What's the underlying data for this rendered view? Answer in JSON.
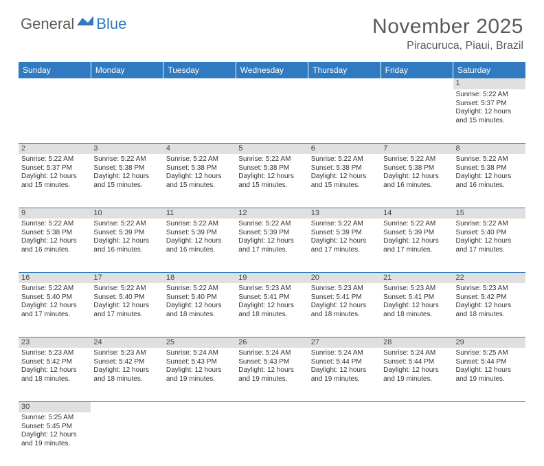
{
  "logo": {
    "text1": "General",
    "text2": "Blue"
  },
  "title": "November 2025",
  "location": "Piracuruca, Piaui, Brazil",
  "colors": {
    "headerBar": "#2f7ac0",
    "dayNumBg": "#e0e0e0",
    "textDark": "#5a5a5a",
    "cellBorder": "#2f7ac0"
  },
  "dayHeaders": [
    "Sunday",
    "Monday",
    "Tuesday",
    "Wednesday",
    "Thursday",
    "Friday",
    "Saturday"
  ],
  "weeks": [
    [
      null,
      null,
      null,
      null,
      null,
      null,
      {
        "n": "1",
        "sr": "5:22 AM",
        "ss": "5:37 PM",
        "dl": "12 hours and 15 minutes."
      }
    ],
    [
      {
        "n": "2",
        "sr": "5:22 AM",
        "ss": "5:37 PM",
        "dl": "12 hours and 15 minutes."
      },
      {
        "n": "3",
        "sr": "5:22 AM",
        "ss": "5:38 PM",
        "dl": "12 hours and 15 minutes."
      },
      {
        "n": "4",
        "sr": "5:22 AM",
        "ss": "5:38 PM",
        "dl": "12 hours and 15 minutes."
      },
      {
        "n": "5",
        "sr": "5:22 AM",
        "ss": "5:38 PM",
        "dl": "12 hours and 15 minutes."
      },
      {
        "n": "6",
        "sr": "5:22 AM",
        "ss": "5:38 PM",
        "dl": "12 hours and 15 minutes."
      },
      {
        "n": "7",
        "sr": "5:22 AM",
        "ss": "5:38 PM",
        "dl": "12 hours and 16 minutes."
      },
      {
        "n": "8",
        "sr": "5:22 AM",
        "ss": "5:38 PM",
        "dl": "12 hours and 16 minutes."
      }
    ],
    [
      {
        "n": "9",
        "sr": "5:22 AM",
        "ss": "5:38 PM",
        "dl": "12 hours and 16 minutes."
      },
      {
        "n": "10",
        "sr": "5:22 AM",
        "ss": "5:39 PM",
        "dl": "12 hours and 16 minutes."
      },
      {
        "n": "11",
        "sr": "5:22 AM",
        "ss": "5:39 PM",
        "dl": "12 hours and 16 minutes."
      },
      {
        "n": "12",
        "sr": "5:22 AM",
        "ss": "5:39 PM",
        "dl": "12 hours and 17 minutes."
      },
      {
        "n": "13",
        "sr": "5:22 AM",
        "ss": "5:39 PM",
        "dl": "12 hours and 17 minutes."
      },
      {
        "n": "14",
        "sr": "5:22 AM",
        "ss": "5:39 PM",
        "dl": "12 hours and 17 minutes."
      },
      {
        "n": "15",
        "sr": "5:22 AM",
        "ss": "5:40 PM",
        "dl": "12 hours and 17 minutes."
      }
    ],
    [
      {
        "n": "16",
        "sr": "5:22 AM",
        "ss": "5:40 PM",
        "dl": "12 hours and 17 minutes."
      },
      {
        "n": "17",
        "sr": "5:22 AM",
        "ss": "5:40 PM",
        "dl": "12 hours and 17 minutes."
      },
      {
        "n": "18",
        "sr": "5:22 AM",
        "ss": "5:40 PM",
        "dl": "12 hours and 18 minutes."
      },
      {
        "n": "19",
        "sr": "5:23 AM",
        "ss": "5:41 PM",
        "dl": "12 hours and 18 minutes."
      },
      {
        "n": "20",
        "sr": "5:23 AM",
        "ss": "5:41 PM",
        "dl": "12 hours and 18 minutes."
      },
      {
        "n": "21",
        "sr": "5:23 AM",
        "ss": "5:41 PM",
        "dl": "12 hours and 18 minutes."
      },
      {
        "n": "22",
        "sr": "5:23 AM",
        "ss": "5:42 PM",
        "dl": "12 hours and 18 minutes."
      }
    ],
    [
      {
        "n": "23",
        "sr": "5:23 AM",
        "ss": "5:42 PM",
        "dl": "12 hours and 18 minutes."
      },
      {
        "n": "24",
        "sr": "5:23 AM",
        "ss": "5:42 PM",
        "dl": "12 hours and 18 minutes."
      },
      {
        "n": "25",
        "sr": "5:24 AM",
        "ss": "5:43 PM",
        "dl": "12 hours and 19 minutes."
      },
      {
        "n": "26",
        "sr": "5:24 AM",
        "ss": "5:43 PM",
        "dl": "12 hours and 19 minutes."
      },
      {
        "n": "27",
        "sr": "5:24 AM",
        "ss": "5:44 PM",
        "dl": "12 hours and 19 minutes."
      },
      {
        "n": "28",
        "sr": "5:24 AM",
        "ss": "5:44 PM",
        "dl": "12 hours and 19 minutes."
      },
      {
        "n": "29",
        "sr": "5:25 AM",
        "ss": "5:44 PM",
        "dl": "12 hours and 19 minutes."
      }
    ],
    [
      {
        "n": "30",
        "sr": "5:25 AM",
        "ss": "5:45 PM",
        "dl": "12 hours and 19 minutes."
      },
      null,
      null,
      null,
      null,
      null,
      null
    ]
  ],
  "labels": {
    "sunrise": "Sunrise:",
    "sunset": "Sunset:",
    "daylight": "Daylight:"
  }
}
